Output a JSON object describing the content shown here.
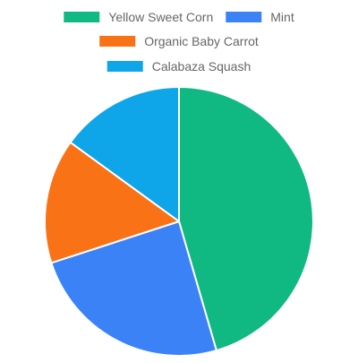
{
  "chart_data": {
    "type": "pie",
    "title": "",
    "legend_position": "top",
    "slices": [
      {
        "label": "Yellow Sweet Corn",
        "value": 45.5,
        "color": "#10b981"
      },
      {
        "label": "Mint",
        "value": 24.5,
        "color": "#3b82f6"
      },
      {
        "label": "Organic Baby Carrot",
        "value": 15.0,
        "color": "#f97316"
      },
      {
        "label": "Calabaza Squash",
        "value": 15.0,
        "color": "#0ea5e9"
      }
    ]
  }
}
